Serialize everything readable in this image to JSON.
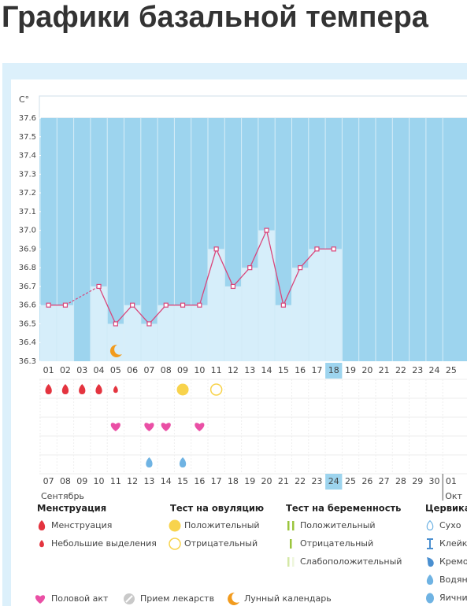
{
  "heading": "Графики базальной темпера",
  "chart_data": {
    "type": "line",
    "y_unit": "C°",
    "categories": [
      "01",
      "02",
      "03",
      "04",
      "05",
      "06",
      "07",
      "08",
      "09",
      "10",
      "11",
      "12",
      "13",
      "14",
      "15",
      "16",
      "17",
      "18",
      "19",
      "20",
      "21",
      "22",
      "23",
      "24",
      "25"
    ],
    "series": [
      {
        "color": "#d9467b",
        "values": [
          36.6,
          36.6,
          null,
          36.7,
          36.5,
          36.6,
          36.5,
          36.6,
          36.6,
          36.6,
          36.9,
          36.7,
          36.8,
          37.0,
          36.6,
          36.8,
          36.9,
          36.9,
          null,
          null,
          null,
          null,
          null,
          null,
          null
        ]
      }
    ],
    "ylim": [
      36.3,
      37.6
    ],
    "yticks": [
      36.3,
      36.4,
      36.5,
      36.6,
      36.7,
      36.8,
      36.9,
      {
        "value": 37.0,
        "label": "37.0"
      },
      37.1,
      37.2,
      37.3,
      37.4,
      37.5,
      37.6
    ],
    "dates": [
      "07",
      "08",
      "09",
      "10",
      "11",
      "12",
      "13",
      "14",
      "15",
      "16",
      "17",
      "18",
      "19",
      "20",
      "21",
      "22",
      "23",
      "24",
      "25",
      "26",
      "27",
      "28",
      "29",
      "30",
      "01"
    ],
    "weekend_dates": [
      1,
      2,
      8,
      9,
      15,
      16,
      22,
      23
    ],
    "month_start": 24,
    "today": 17,
    "months": [
      "Сентябрь",
      "Окт"
    ],
    "symbols": {
      "menstruation": [
        0,
        1,
        2,
        3
      ],
      "spotting": [
        4
      ],
      "ovulation_positive": [
        8
      ],
      "ovulation_negative": [
        10
      ],
      "intercourse": [
        4,
        6,
        7,
        9
      ],
      "watery": [
        6,
        8
      ],
      "lunar": [
        4
      ]
    }
  },
  "legend": {
    "groups": [
      {
        "title": "Менструация",
        "items": [
          "Менструация",
          "Небольшие выделения"
        ]
      },
      {
        "title": "Тест на овуляцию",
        "items": [
          "Положительный",
          "Отрицательный"
        ]
      },
      {
        "title": "Тест на беременность",
        "items": [
          "Положительный",
          "Отрицательный",
          "Слабоположительный"
        ]
      },
      {
        "title": "Цервикал",
        "items": [
          "Сухо",
          "Клейк",
          "Кремо",
          "Водян",
          "Яични"
        ]
      }
    ],
    "extra": [
      "Половой акт",
      "Прием лекарств",
      "Лунный календарь"
    ]
  }
}
